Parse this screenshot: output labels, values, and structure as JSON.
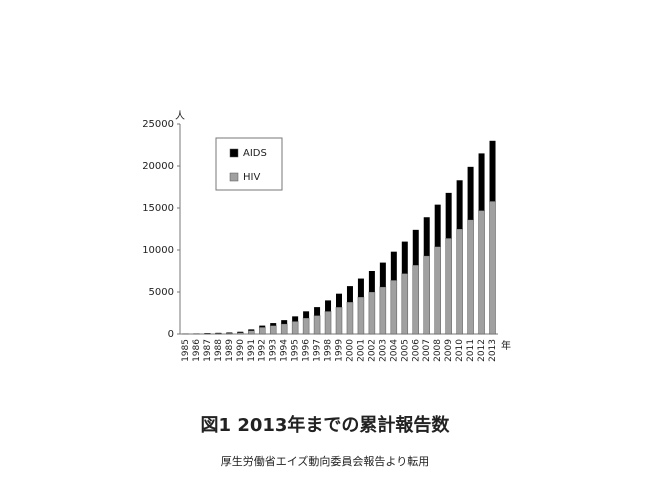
{
  "chart_data": {
    "type": "stacked_bar",
    "title": "図1 2013年までの累計報告数",
    "subtitle": "厚生労働省エイズ動向委員会報告より転用",
    "y_unit": "人",
    "x_unit": "年",
    "categories": [
      "1985",
      "1986",
      "1987",
      "1988",
      "1989",
      "1990",
      "1991",
      "1992",
      "1993",
      "1994",
      "1995",
      "1996",
      "1997",
      "1998",
      "1999",
      "2000",
      "2001",
      "2002",
      "2003",
      "2004",
      "2005",
      "2006",
      "2007",
      "2008",
      "2009",
      "2010",
      "2011",
      "2012",
      "2013"
    ],
    "series": [
      {
        "name": "HIV",
        "color": "#a0a0a0",
        "values": [
          20,
          30,
          60,
          80,
          100,
          160,
          400,
          800,
          1000,
          1200,
          1500,
          1900,
          2200,
          2700,
          3200,
          3800,
          4400,
          5000,
          5600,
          6400,
          7200,
          8200,
          9300,
          10400,
          11400,
          12500,
          13600,
          14700,
          15800
        ]
      },
      {
        "name": "AIDS",
        "color": "#000000",
        "values": [
          10,
          20,
          40,
          60,
          80,
          110,
          150,
          200,
          300,
          450,
          600,
          800,
          1000,
          1300,
          1600,
          1900,
          2200,
          2500,
          2900,
          3400,
          3800,
          4200,
          4600,
          5000,
          5400,
          5800,
          6300,
          6800,
          7200
        ]
      }
    ],
    "ylim": [
      0,
      25000
    ],
    "yticks": [
      0,
      5000,
      10000,
      15000,
      20000,
      25000
    ],
    "grid": false
  }
}
